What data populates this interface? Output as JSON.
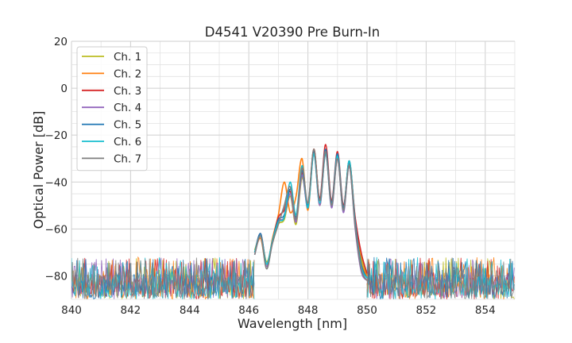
{
  "chart_data": {
    "type": "line",
    "title": "D4541 V20390 Pre Burn-In",
    "xlabel": "Wavelength [nm]",
    "ylabel": "Optical Power [dB]",
    "xlim": [
      840,
      855
    ],
    "ylim": [
      -90,
      20
    ],
    "xticks": [
      840,
      842,
      844,
      846,
      848,
      850,
      852,
      854
    ],
    "yticks": [
      20,
      0,
      -20,
      -40,
      -60,
      -80
    ],
    "grid": true,
    "legend_position": "top-left",
    "noise_floor": {
      "range": [
        -90,
        -72
      ],
      "wavelength_range": [
        840,
        846.2
      ]
    },
    "series": [
      {
        "name": "Ch. 1",
        "color": "#bcbd22",
        "x": [
          846.2,
          846.4,
          846.6,
          846.8,
          847.0,
          847.2,
          847.4,
          847.6,
          847.8,
          848.0,
          848.2,
          848.4,
          848.6,
          848.8,
          849.0,
          849.2,
          849.4,
          849.6,
          849.8,
          850.0
        ],
        "y": [
          -69,
          -63,
          -74,
          -66,
          -58,
          -56,
          -46,
          -58,
          -38,
          -50,
          -27,
          -50,
          -27,
          -50,
          -29,
          -52,
          -32,
          -58,
          -72,
          -80
        ]
      },
      {
        "name": "Ch. 2",
        "color": "#ff7f0e",
        "x": [
          846.2,
          846.4,
          846.6,
          846.8,
          847.0,
          847.2,
          847.4,
          847.6,
          847.8,
          848.0,
          848.2,
          848.4,
          848.6,
          848.8,
          849.0,
          849.2,
          849.4,
          849.6,
          849.8,
          850.0
        ],
        "y": [
          -70,
          -64,
          -76,
          -64,
          -54,
          -40,
          -53,
          -46,
          -30,
          -52,
          -26,
          -48,
          -27,
          -49,
          -29,
          -51,
          -31,
          -56,
          -74,
          -80
        ]
      },
      {
        "name": "Ch. 3",
        "color": "#d62728",
        "x": [
          846.2,
          846.4,
          846.6,
          846.8,
          847.0,
          847.2,
          847.4,
          847.6,
          847.8,
          848.0,
          848.2,
          848.4,
          848.6,
          848.8,
          849.0,
          849.2,
          849.4,
          849.6,
          849.8,
          850.0
        ],
        "y": [
          -70,
          -62,
          -75,
          -65,
          -55,
          -52,
          -44,
          -56,
          -36,
          -50,
          -26,
          -47,
          -24,
          -48,
          -27,
          -50,
          -32,
          -55,
          -70,
          -79
        ]
      },
      {
        "name": "Ch. 4",
        "color": "#9467bd",
        "x": [
          846.2,
          846.4,
          846.6,
          846.8,
          847.0,
          847.2,
          847.4,
          847.6,
          847.8,
          848.0,
          848.2,
          848.4,
          848.6,
          848.8,
          849.0,
          849.2,
          849.4,
          849.6,
          849.8,
          850.0
        ],
        "y": [
          -71,
          -63,
          -76,
          -66,
          -57,
          -55,
          -45,
          -57,
          -37,
          -51,
          -28,
          -50,
          -28,
          -51,
          -30,
          -53,
          -33,
          -60,
          -78,
          -82
        ]
      },
      {
        "name": "Ch. 5",
        "color": "#1f77b4",
        "x": [
          846.2,
          846.4,
          846.6,
          846.8,
          847.0,
          847.2,
          847.4,
          847.6,
          847.8,
          848.0,
          848.2,
          848.4,
          848.6,
          848.8,
          849.0,
          849.2,
          849.4,
          849.6,
          849.8,
          850.0
        ],
        "y": [
          -70,
          -62,
          -75,
          -65,
          -56,
          -54,
          -43,
          -55,
          -35,
          -50,
          -27,
          -48,
          -26,
          -49,
          -28,
          -51,
          -31,
          -57,
          -75,
          -81
        ]
      },
      {
        "name": "Ch. 6",
        "color": "#17becf",
        "x": [
          846.2,
          846.4,
          846.6,
          846.8,
          847.0,
          847.2,
          847.4,
          847.6,
          847.8,
          848.0,
          848.2,
          848.4,
          848.6,
          848.8,
          849.0,
          849.2,
          849.4,
          849.6,
          849.8,
          850.0
        ],
        "y": [
          -70,
          -63,
          -75,
          -65,
          -57,
          -55,
          -40,
          -54,
          -33,
          -51,
          -28,
          -49,
          -28,
          -50,
          -29,
          -52,
          -31,
          -58,
          -76,
          -81
        ]
      },
      {
        "name": "Ch. 7",
        "color": "#7f7f7f",
        "x": [
          846.2,
          846.4,
          846.6,
          846.8,
          847.0,
          847.2,
          847.4,
          847.6,
          847.8,
          848.0,
          848.2,
          848.4,
          848.6,
          848.8,
          849.0,
          849.2,
          849.4,
          849.6,
          849.8,
          850.0
        ],
        "y": [
          -71,
          -63,
          -77,
          -66,
          -58,
          -50,
          -42,
          -56,
          -34,
          -49,
          -26,
          -48,
          -27,
          -50,
          -30,
          -52,
          -33,
          -59,
          -77,
          -82
        ]
      }
    ]
  }
}
